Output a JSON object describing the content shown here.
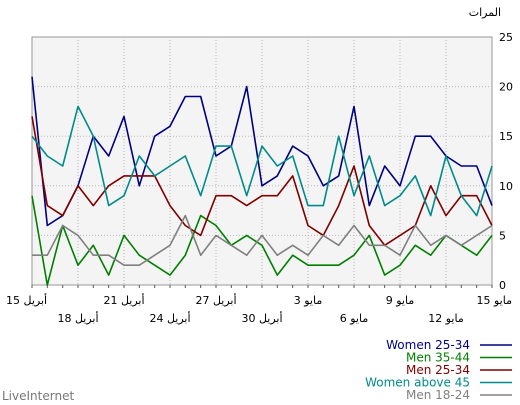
{
  "brand": "LiveInternet",
  "chart_data": {
    "type": "line",
    "unit_label": "المرات",
    "ylim": [
      0,
      25
    ],
    "y_ticks": [
      0,
      5,
      10,
      15,
      20,
      25
    ],
    "grid": true,
    "legend_position": "bottom-right",
    "x_tick_labels": [
      {
        "label": "15 مايو",
        "index": 0,
        "row": 1
      },
      {
        "label": "12 مايو",
        "index": 3,
        "row": 2
      },
      {
        "label": "9 مايو",
        "index": 6,
        "row": 1
      },
      {
        "label": "6 مايو",
        "index": 9,
        "row": 2
      },
      {
        "label": "3 مايو",
        "index": 12,
        "row": 1
      },
      {
        "label": "30 أبريل",
        "index": 15,
        "row": 2
      },
      {
        "label": "27 أبريل",
        "index": 18,
        "row": 1
      },
      {
        "label": "24 أبريل",
        "index": 21,
        "row": 2
      },
      {
        "label": "21 أبريل",
        "index": 24,
        "row": 1
      },
      {
        "label": "18 أبريل",
        "index": 27,
        "row": 2
      },
      {
        "label": "15 أبريل",
        "index": 30,
        "row": 1
      }
    ],
    "points_count": 31,
    "series": [
      {
        "name": "Women 25-34",
        "color": "#000080",
        "values": [
          8,
          12,
          12,
          13,
          15,
          15,
          10,
          12,
          8,
          18,
          11,
          10,
          13,
          14,
          11,
          10,
          20,
          14,
          13,
          19,
          19,
          16,
          15,
          10,
          17,
          13,
          15,
          10,
          7,
          6,
          21
        ]
      },
      {
        "name": "Men 35-44",
        "color": "#008000",
        "values": [
          5,
          3,
          4,
          5,
          3,
          4,
          2,
          1,
          5,
          3,
          2,
          2,
          2,
          3,
          1,
          4,
          5,
          4,
          6,
          7,
          3,
          1,
          2,
          3,
          5,
          1,
          4,
          2,
          6,
          0,
          9
        ]
      },
      {
        "name": "Men 25-34",
        "color": "#800000",
        "values": [
          6,
          9,
          9,
          7,
          10,
          6,
          5,
          4,
          6,
          12,
          8,
          5,
          6,
          11,
          9,
          9,
          8,
          9,
          9,
          5,
          6,
          8,
          11,
          11,
          11,
          10,
          8,
          10,
          7,
          8,
          17
        ]
      },
      {
        "name": "Women above 45",
        "color": "#008b8b",
        "values": [
          12,
          7,
          9,
          13,
          7,
          11,
          9,
          8,
          13,
          9,
          15,
          8,
          8,
          13,
          12,
          14,
          9,
          14,
          14,
          9,
          13,
          12,
          11,
          13,
          9,
          8,
          15,
          18,
          12,
          13,
          15
        ]
      },
      {
        "name": "Men 18-24",
        "color": "#808080",
        "values": [
          6,
          5,
          4,
          5,
          4,
          6,
          3,
          4,
          4,
          6,
          4,
          5,
          3,
          4,
          3,
          5,
          3,
          4,
          5,
          3,
          7,
          4,
          3,
          2,
          2,
          3,
          3,
          5,
          6,
          3,
          3
        ]
      }
    ]
  }
}
